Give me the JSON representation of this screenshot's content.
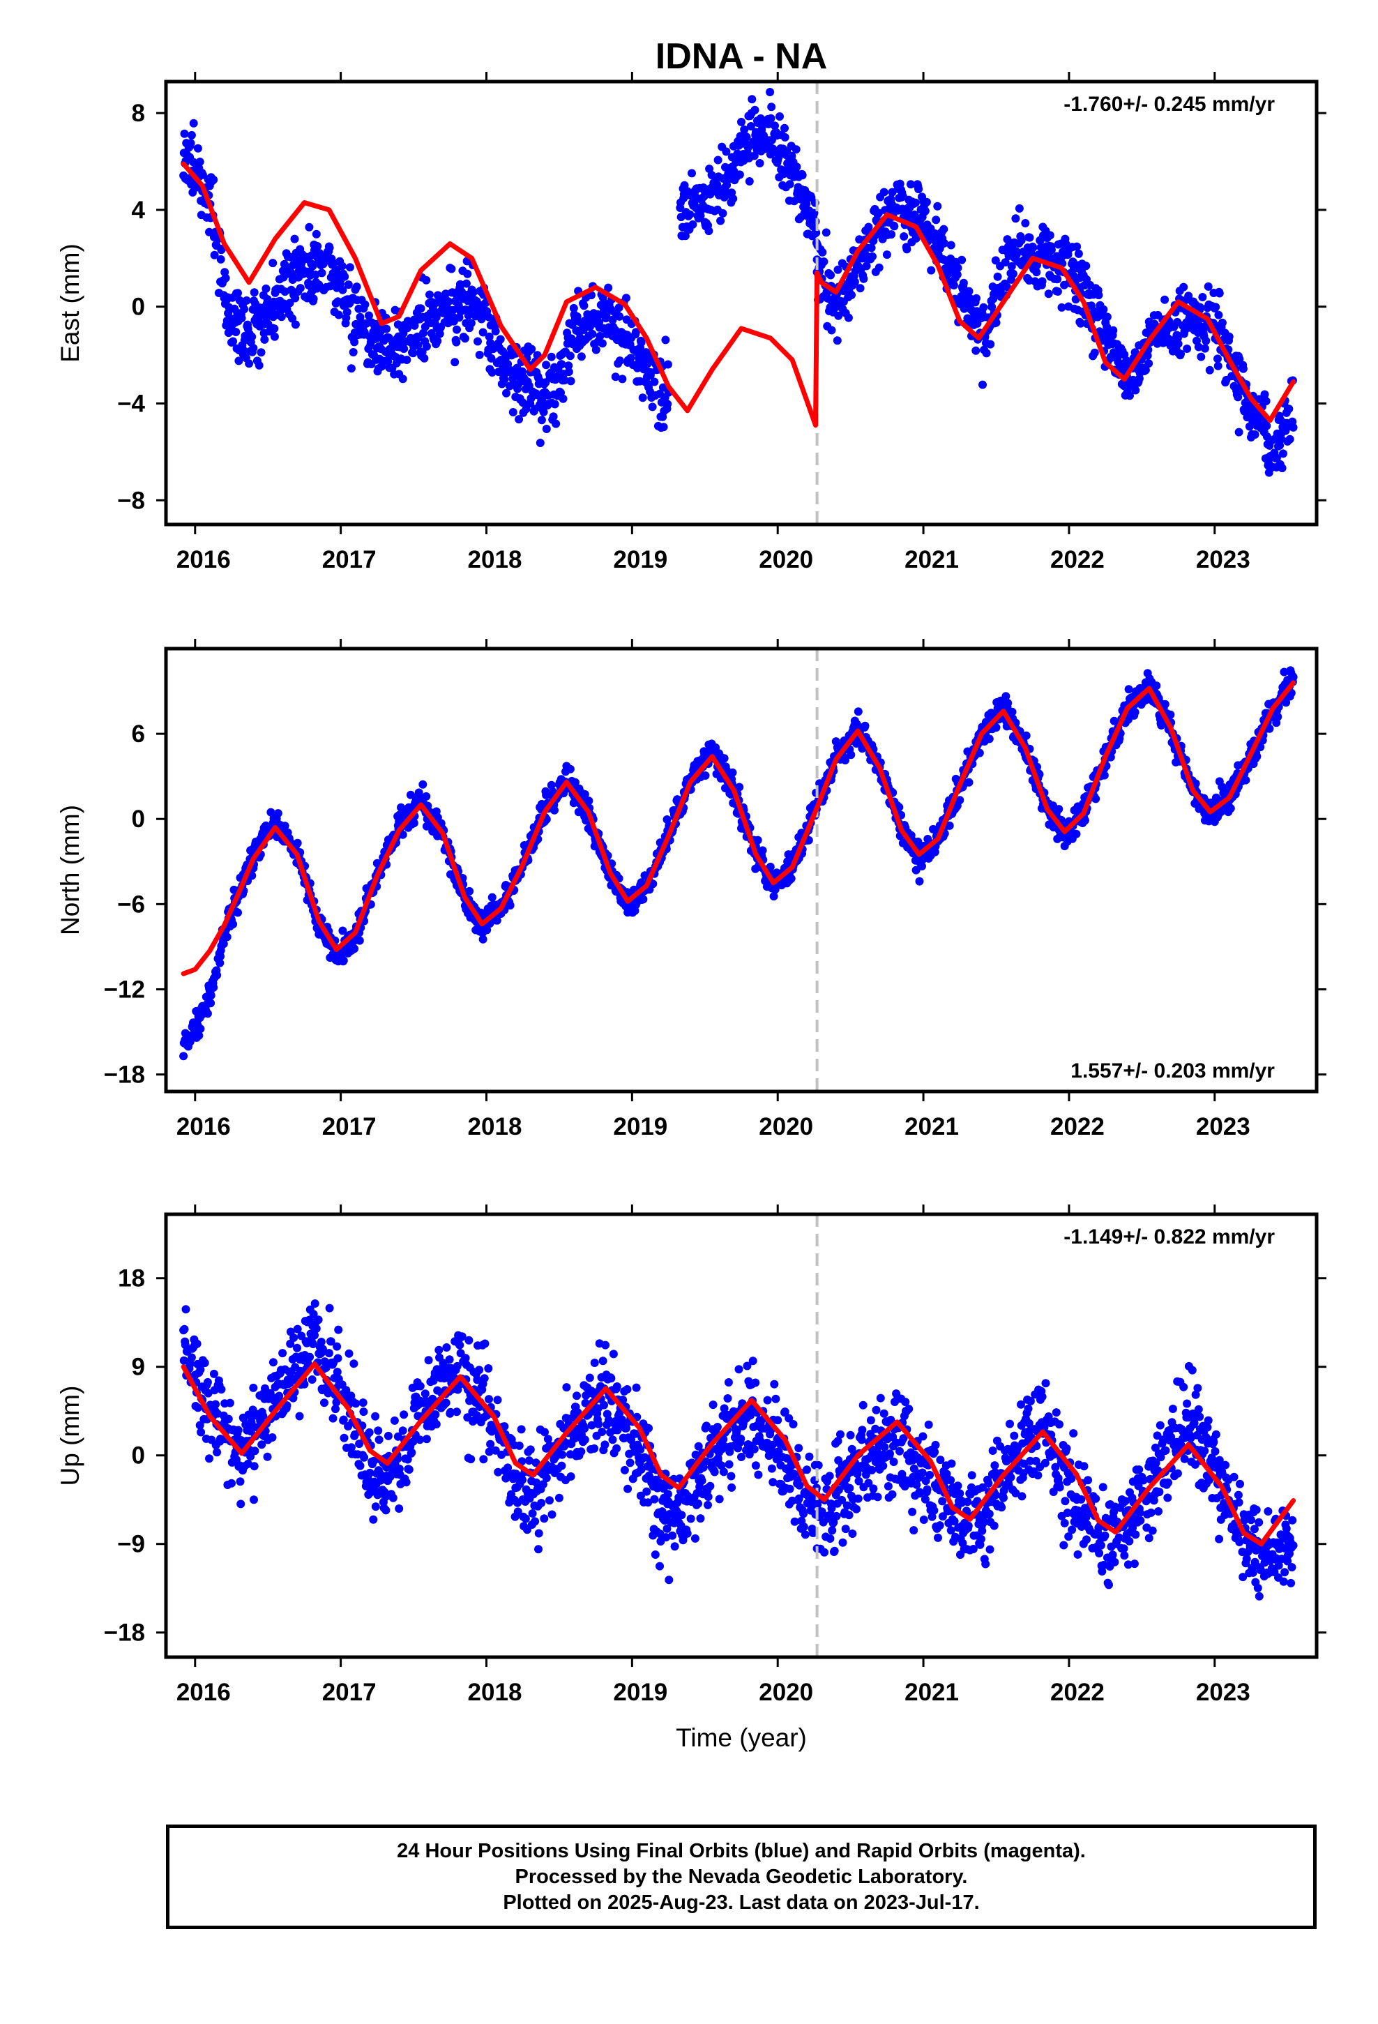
{
  "title": "IDNA - NA",
  "xlabel": "Time (year)",
  "x_ticks": [
    2016,
    2017,
    2018,
    2019,
    2020,
    2021,
    2022,
    2023
  ],
  "footer": {
    "line1": "24 Hour Positions Using Final Orbits (blue) and Rapid Orbits (magenta).",
    "line2": "Processed by the Nevada Geodetic Laboratory.",
    "line3": "Plotted on 2025-Aug-23. Last data on 2023-Jul-17."
  },
  "colors": {
    "points": "#0000ff",
    "model": "#ff0000",
    "event_line": "#c0c0c0",
    "frame": "#000000"
  },
  "chart_data": [
    {
      "type": "scatter",
      "component": "East",
      "ylabel": "East (mm)",
      "rate_label": "-1.760+/- 0.245 mm/yr",
      "rate_position": "top-right",
      "xlim": [
        2015.8,
        2023.7
      ],
      "ylim": [
        -9,
        9.3
      ],
      "y_ticks": [
        -8,
        -4,
        0,
        4,
        8
      ],
      "event_line_x": 2020.27,
      "data_range": [
        2015.92,
        2023.54
      ],
      "gaps": [
        [
          2019.25,
          2019.33
        ]
      ],
      "model_curve": {
        "x": [
          2015.92,
          2016.05,
          2016.2,
          2016.37,
          2016.55,
          2016.75,
          2016.92,
          2017.1,
          2017.28,
          2017.4,
          2017.55,
          2017.75,
          2017.9,
          2018.1,
          2018.3,
          2018.4,
          2018.55,
          2018.75,
          2018.95,
          2019.1,
          2019.25,
          2019.38,
          2019.55,
          2019.75,
          2019.95,
          2020.1,
          2020.26,
          2020.27,
          2020.3,
          2020.4,
          2020.55,
          2020.75,
          2020.95,
          2021.1,
          2021.25,
          2021.38,
          2021.55,
          2021.75,
          2021.95,
          2022.1,
          2022.25,
          2022.38,
          2022.55,
          2022.75,
          2022.95,
          2023.1,
          2023.25,
          2023.38,
          2023.54
        ],
        "y": [
          5.9,
          5.0,
          2.6,
          1.0,
          2.8,
          4.3,
          4.0,
          2.0,
          -0.7,
          -0.4,
          1.5,
          2.6,
          2.0,
          -0.8,
          -2.6,
          -2.0,
          0.2,
          0.8,
          0.1,
          -1.3,
          -3.3,
          -4.3,
          -2.6,
          -0.9,
          -1.3,
          -2.2,
          -4.9,
          1.4,
          1.0,
          0.6,
          2.3,
          3.8,
          3.3,
          1.7,
          -0.6,
          -1.3,
          0.2,
          2.0,
          1.6,
          0.2,
          -2.3,
          -3.0,
          -1.4,
          0.2,
          -0.5,
          -2.2,
          -3.8,
          -4.7,
          -3.1
        ]
      },
      "scatter_segments": [
        {
          "x": [
            2015.92,
            2016.1,
            2016.25,
            2016.45,
            2016.7,
            2016.9,
            2017.1,
            2017.3,
            2017.5,
            2017.7,
            2017.9,
            2018.1,
            2018.3,
            2018.45,
            2018.6,
            2018.8,
            2019.0,
            2019.25
          ],
          "y": [
            6.3,
            4.5,
            -1.0,
            -1.0,
            1.5,
            1.8,
            -0.4,
            -1.8,
            -1.2,
            -0.2,
            0.2,
            -2.0,
            -3.2,
            -3.8,
            -0.9,
            -0.3,
            -1.6,
            -4.0
          ],
          "spread": 1.4
        },
        {
          "x": [
            2019.33,
            2019.5,
            2019.7,
            2019.85,
            2020.0,
            2020.15,
            2020.27
          ],
          "y": [
            3.8,
            4.2,
            5.8,
            7.3,
            6.8,
            5.2,
            3.0
          ],
          "spread": 1.2
        },
        {
          "x": [
            2020.27,
            2020.4,
            2020.6,
            2020.8,
            2021.0,
            2021.2,
            2021.4,
            2021.6,
            2021.8,
            2022.0,
            2022.2,
            2022.4,
            2022.6,
            2022.8,
            2023.0,
            2023.2,
            2023.4,
            2023.54
          ],
          "y": [
            1.6,
            0.0,
            2.3,
            4.0,
            3.6,
            1.4,
            -1.2,
            2.2,
            2.1,
            1.6,
            -0.6,
            -3.0,
            -1.0,
            -0.6,
            -0.8,
            -3.5,
            -6.2,
            -4.0
          ],
          "spread": 1.2
        }
      ]
    },
    {
      "type": "scatter",
      "component": "North",
      "ylabel": "North (mm)",
      "rate_label": "1.557+/- 0.203 mm/yr",
      "rate_position": "bottom-right",
      "xlim": [
        2015.8,
        2023.7
      ],
      "ylim": [
        -19.2,
        12
      ],
      "y_ticks": [
        -18,
        -12,
        -6,
        0,
        6
      ],
      "event_line_x": 2020.27,
      "data_range": [
        2015.92,
        2023.54
      ],
      "gaps": [],
      "model_curve": {
        "x": [
          2015.92,
          2016.0,
          2016.1,
          2016.2,
          2016.3,
          2016.4,
          2016.55,
          2016.7,
          2016.85,
          2016.97,
          2017.1,
          2017.25,
          2017.4,
          2017.55,
          2017.7,
          2017.85,
          2017.97,
          2018.1,
          2018.25,
          2018.4,
          2018.55,
          2018.7,
          2018.85,
          2018.97,
          2019.1,
          2019.25,
          2019.4,
          2019.55,
          2019.7,
          2019.85,
          2019.97,
          2020.1,
          2020.27,
          2020.4,
          2020.55,
          2020.7,
          2020.85,
          2020.97,
          2021.1,
          2021.25,
          2021.4,
          2021.55,
          2021.7,
          2021.85,
          2021.97,
          2022.1,
          2022.25,
          2022.4,
          2022.55,
          2022.7,
          2022.85,
          2022.97,
          2023.1,
          2023.25,
          2023.4,
          2023.54
        ],
        "y": [
          -10.9,
          -10.6,
          -9.3,
          -7.5,
          -5.2,
          -2.8,
          -0.6,
          -2.5,
          -7.2,
          -9.2,
          -8.0,
          -4.0,
          -0.8,
          1.0,
          -1.0,
          -5.5,
          -7.4,
          -6.3,
          -3.2,
          0.5,
          2.6,
          0.5,
          -3.8,
          -5.8,
          -4.7,
          -1.2,
          2.6,
          4.4,
          2.0,
          -2.5,
          -4.5,
          -3.4,
          0.8,
          4.2,
          6.2,
          3.6,
          -0.8,
          -2.5,
          -1.4,
          2.4,
          6.0,
          7.6,
          5.0,
          0.7,
          -0.9,
          0.4,
          4.4,
          7.8,
          9.2,
          6.4,
          2.0,
          0.5,
          1.5,
          4.6,
          7.8,
          9.6
        ]
      },
      "scatter_segments": [
        {
          "x": [
            2015.92,
            2016.0,
            2016.1,
            2016.2,
            2016.3,
            2016.4,
            2016.55,
            2016.7,
            2016.85,
            2016.97,
            2017.1,
            2017.25,
            2017.4,
            2017.55,
            2017.7,
            2017.85,
            2017.97,
            2018.1,
            2018.25,
            2018.4,
            2018.55,
            2018.7,
            2018.85,
            2018.97,
            2019.1,
            2019.25,
            2019.4,
            2019.55,
            2019.7,
            2019.85,
            2019.97,
            2020.1,
            2020.27,
            2020.4,
            2020.55,
            2020.7,
            2020.85,
            2020.97,
            2021.1,
            2021.25,
            2021.4,
            2021.55,
            2021.7,
            2021.85,
            2021.97,
            2022.1,
            2022.25,
            2022.4,
            2022.55,
            2022.7,
            2022.85,
            2022.97,
            2023.1,
            2023.25,
            2023.4,
            2023.54
          ],
          "y": [
            -16.0,
            -14.8,
            -12.3,
            -8.2,
            -5.3,
            -2.6,
            -0.2,
            -2.5,
            -7.4,
            -9.6,
            -8.2,
            -4.0,
            -0.6,
            1.2,
            -1.0,
            -5.6,
            -7.6,
            -6.4,
            -3.2,
            0.6,
            2.8,
            0.5,
            -3.8,
            -6.0,
            -4.8,
            -1.2,
            2.8,
            4.8,
            2.0,
            -2.5,
            -4.6,
            -3.4,
            1.0,
            4.4,
            6.4,
            3.6,
            -0.8,
            -2.6,
            -1.4,
            2.4,
            6.0,
            7.8,
            5.0,
            0.7,
            -1.0,
            0.4,
            4.4,
            7.8,
            9.4,
            6.4,
            2.0,
            0.5,
            1.5,
            4.6,
            7.8,
            9.6
          ],
          "spread": 0.9
        }
      ]
    },
    {
      "type": "scatter",
      "component": "Up",
      "ylabel": "Up (mm)",
      "rate_label": "-1.149+/- 0.822 mm/yr",
      "rate_position": "top-right",
      "xlim": [
        2015.8,
        2023.7
      ],
      "ylim": [
        -20.5,
        24.5
      ],
      "y_ticks": [
        -18,
        -9,
        0,
        9,
        18
      ],
      "event_line_x": 2020.27,
      "data_range": [
        2015.92,
        2023.54
      ],
      "gaps": [],
      "model_curve": {
        "x": [
          2015.92,
          2016.1,
          2016.32,
          2016.55,
          2016.82,
          2017.05,
          2017.2,
          2017.32,
          2017.55,
          2017.82,
          2018.05,
          2018.2,
          2018.32,
          2018.55,
          2018.82,
          2019.05,
          2019.2,
          2019.32,
          2019.55,
          2019.82,
          2020.05,
          2020.2,
          2020.32,
          2020.55,
          2020.82,
          2021.05,
          2021.2,
          2021.32,
          2021.55,
          2021.82,
          2022.05,
          2022.2,
          2022.32,
          2022.55,
          2022.82,
          2023.05,
          2023.2,
          2023.32,
          2023.54
        ],
        "y": [
          9.0,
          4.0,
          0.2,
          4.5,
          9.3,
          4.8,
          0.5,
          -0.8,
          3.5,
          8.0,
          4.0,
          -0.8,
          -2.0,
          2.3,
          6.8,
          2.8,
          -2.0,
          -3.3,
          1.2,
          5.6,
          1.6,
          -3.1,
          -4.5,
          0.0,
          3.4,
          -0.6,
          -5.3,
          -6.5,
          -2.0,
          2.4,
          -1.9,
          -6.6,
          -7.8,
          -3.3,
          1.1,
          -3.2,
          -7.9,
          -9.0,
          -4.6
        ]
      },
      "scatter_segments": [
        {
          "x": [
            2015.92,
            2016.1,
            2016.32,
            2016.55,
            2016.82,
            2017.05,
            2017.2,
            2017.32,
            2017.55,
            2017.82,
            2018.05,
            2018.2,
            2018.32,
            2018.55,
            2018.82,
            2019.05,
            2019.2,
            2019.32,
            2019.55,
            2019.82,
            2020.05,
            2020.2,
            2020.32,
            2020.55,
            2020.82,
            2021.05,
            2021.2,
            2021.32,
            2021.55,
            2021.82,
            2022.05,
            2022.2,
            2022.32,
            2022.55,
            2022.82,
            2023.05,
            2023.2,
            2023.32,
            2023.54
          ],
          "y": [
            10.5,
            4.5,
            1.0,
            5.5,
            12.0,
            5.0,
            -2.0,
            -3.0,
            3.5,
            9.0,
            3.0,
            -2.5,
            -4.0,
            2.0,
            5.5,
            1.0,
            -6.0,
            -6.0,
            0.5,
            4.0,
            -1.0,
            -5.0,
            -5.5,
            -1.0,
            1.5,
            -2.5,
            -6.0,
            -7.0,
            -2.5,
            3.0,
            -5.0,
            -8.0,
            -8.5,
            -3.5,
            3.5,
            -2.5,
            -8.0,
            -10.5,
            -9.0
          ],
          "spread": 4.2
        }
      ]
    }
  ]
}
